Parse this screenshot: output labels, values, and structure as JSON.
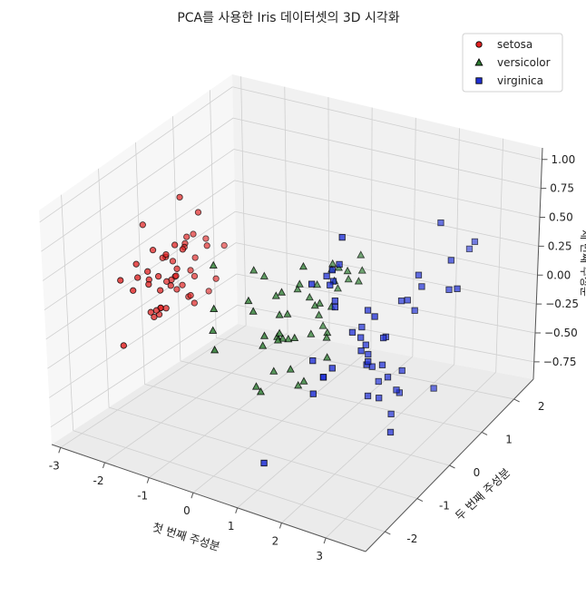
{
  "chart_data": {
    "type": "scatter",
    "projection": "3d",
    "title": "PCA를 사용한 Iris 데이터셋의 3D 시각화",
    "xlabel": "첫 번째 주성분",
    "ylabel": "두 번째 주성분",
    "zlabel": "세 번째 주성분",
    "xlim": [
      -3.2,
      3.9
    ],
    "ylim": [
      -2.6,
      2.6
    ],
    "zlim": [
      -0.9,
      1.1
    ],
    "x_ticks": [
      -3,
      -2,
      -1,
      0,
      1,
      2,
      3
    ],
    "y_ticks": [
      -2,
      -1,
      0,
      1,
      2
    ],
    "z_ticks": [
      -0.75,
      -0.5,
      -0.25,
      0.0,
      0.25,
      0.5,
      0.75,
      1.0
    ],
    "x_tick_labels": [
      "-3",
      "-2",
      "-1",
      "0",
      "1",
      "2",
      "3"
    ],
    "y_tick_labels": [
      "-2",
      "-1",
      "0",
      "1",
      "2"
    ],
    "z_tick_labels": [
      "−0.75",
      "−0.50",
      "−0.25",
      "0.00",
      "0.25",
      "0.50",
      "0.75",
      "1.00"
    ],
    "grid": true,
    "legend_position": "top-right",
    "series": [
      {
        "name": "setosa",
        "marker": "circle",
        "color": "#e02020",
        "points": [
          [
            -2.68,
            0.32,
            -0.03
          ],
          [
            -2.71,
            -0.18,
            -0.21
          ],
          [
            -2.89,
            -0.14,
            0.02
          ],
          [
            -2.75,
            -0.32,
            0.03
          ],
          [
            -2.73,
            0.33,
            0.09
          ],
          [
            -2.28,
            0.74,
            0.17
          ],
          [
            -2.82,
            -0.09,
            0.26
          ],
          [
            -2.63,
            0.16,
            -0.02
          ],
          [
            -2.89,
            -0.58,
            0.02
          ],
          [
            -2.67,
            -0.11,
            -0.2
          ],
          [
            -2.51,
            0.65,
            -0.08
          ],
          [
            -2.61,
            0.01,
            0.22
          ],
          [
            -2.79,
            -0.24,
            -0.22
          ],
          [
            -3.23,
            -0.51,
            0.06
          ],
          [
            -2.64,
            1.18,
            -0.32
          ],
          [
            -2.39,
            1.34,
            0.04
          ],
          [
            -2.62,
            0.81,
            0.03
          ],
          [
            -2.65,
            0.31,
            -0.02
          ],
          [
            -2.2,
            0.87,
            -0.12
          ],
          [
            -2.59,
            0.51,
            0.21
          ],
          [
            -2.31,
            0.39,
            -0.23
          ],
          [
            -2.54,
            0.43,
            0.2
          ],
          [
            -3.22,
            0.13,
            0.39
          ],
          [
            -2.3,
            0.1,
            0.27
          ],
          [
            -2.36,
            -0.04,
            0.33
          ],
          [
            -2.51,
            -0.15,
            -0.18
          ],
          [
            -2.47,
            0.13,
            0.09
          ],
          [
            -2.56,
            0.37,
            -0.1
          ],
          [
            -2.64,
            0.31,
            -0.13
          ],
          [
            -2.63,
            -0.19,
            0.08
          ],
          [
            -2.59,
            -0.2,
            -0.03
          ],
          [
            -2.41,
            0.41,
            -0.18
          ],
          [
            -2.65,
            0.81,
            0.22
          ],
          [
            -2.6,
            1.09,
            0.13
          ],
          [
            -2.67,
            -0.11,
            -0.2
          ],
          [
            -2.87,
            0.08,
            -0.31
          ],
          [
            -2.63,
            0.61,
            -0.25
          ],
          [
            -2.8,
            0.14,
            0.15
          ],
          [
            -2.98,
            -0.34,
            0.07
          ],
          [
            -2.59,
            0.09,
            -0.05
          ],
          [
            -2.77,
            0.19,
            0.15
          ],
          [
            -2.85,
            -0.94,
            -0.36
          ],
          [
            -3.0,
            -0.34,
            0.18
          ],
          [
            -2.41,
            0.19,
            0.67
          ],
          [
            -2.21,
            0.44,
            0.51
          ],
          [
            -2.71,
            -0.25,
            -0.25
          ],
          [
            -2.54,
            0.5,
            0.27
          ],
          [
            -2.84,
            -0.23,
            0.11
          ],
          [
            -2.54,
            0.58,
            -0.02
          ],
          [
            -2.7,
            0.11,
            -0.03
          ]
        ]
      },
      {
        "name": "versicolor",
        "marker": "triangle",
        "color": "#2e7d32",
        "points": [
          [
            1.28,
            0.69,
            0.39
          ],
          [
            0.93,
            0.32,
            0.37
          ],
          [
            1.46,
            0.5,
            0.32
          ],
          [
            0.18,
            -0.83,
            -0.47
          ],
          [
            1.09,
            0.08,
            0.09
          ],
          [
            0.64,
            -0.42,
            -0.09
          ],
          [
            1.1,
            0.28,
            0.36
          ],
          [
            -0.75,
            -1.0,
            -0.03
          ],
          [
            1.04,
            0.23,
            0.26
          ],
          [
            -0.01,
            -0.72,
            -0.47
          ],
          [
            -0.51,
            -1.26,
            -0.11
          ],
          [
            0.51,
            -0.1,
            0.26
          ],
          [
            0.26,
            -0.55,
            -0.36
          ],
          [
            0.98,
            -0.12,
            0.15
          ],
          [
            -0.17,
            -0.25,
            0.3
          ],
          [
            0.93,
            0.47,
            0.14
          ],
          [
            0.66,
            -0.35,
            -0.48
          ],
          [
            0.23,
            -0.33,
            0.04
          ],
          [
            0.94,
            -0.54,
            -0.38
          ],
          [
            0.04,
            -0.58,
            -0.17
          ],
          [
            1.12,
            -0.08,
            -0.08
          ],
          [
            0.36,
            0.03,
            0.18
          ],
          [
            1.3,
            -0.33,
            -0.05
          ],
          [
            0.92,
            -0.18,
            0.14
          ],
          [
            0.71,
            0.15,
            0.22
          ],
          [
            0.9,
            0.33,
            0.32
          ],
          [
            1.33,
            0.24,
            0.36
          ],
          [
            1.56,
            0.27,
            0.29
          ],
          [
            0.81,
            -0.16,
            -0.1
          ],
          [
            -0.31,
            -0.37,
            0.36
          ],
          [
            -0.07,
            -0.7,
            0.12
          ],
          [
            -0.19,
            -0.68,
            0.19
          ],
          [
            0.14,
            -0.31,
            0.18
          ],
          [
            1.38,
            -0.42,
            -0.18
          ],
          [
            0.59,
            -0.48,
            -0.33
          ],
          [
            0.81,
            0.19,
            -0.11
          ],
          [
            1.22,
            0.41,
            0.25
          ],
          [
            0.81,
            -0.37,
            0.48
          ],
          [
            0.25,
            -0.27,
            -0.16
          ],
          [
            0.16,
            -0.68,
            -0.06
          ],
          [
            0.46,
            -0.67,
            -0.07
          ],
          [
            0.89,
            -0.03,
            0.03
          ],
          [
            0.23,
            -0.4,
            -0.12
          ],
          [
            -0.71,
            -1.01,
            0.15
          ],
          [
            0.36,
            -0.5,
            -0.06
          ],
          [
            0.33,
            -0.21,
            -0.17
          ],
          [
            0.38,
            -0.29,
            0.05
          ],
          [
            0.64,
            0.02,
            0.14
          ],
          [
            -0.91,
            -0.75,
            0.43
          ],
          [
            0.3,
            -0.35,
            0.23
          ]
        ]
      },
      {
        "name": "virginica",
        "marker": "square",
        "color": "#1f2fd6",
        "points": [
          [
            2.53,
            -0.01,
            -0.76
          ],
          [
            1.41,
            -0.57,
            -0.3
          ],
          [
            2.62,
            0.34,
            0.21
          ],
          [
            1.97,
            -0.18,
            -0.13
          ],
          [
            2.35,
            -0.04,
            -0.24
          ],
          [
            3.4,
            0.55,
            0.31
          ],
          [
            0.52,
            -1.19,
            -0.92
          ],
          [
            2.93,
            0.35,
            0.34
          ],
          [
            2.32,
            -0.24,
            0.18
          ],
          [
            2.92,
            0.78,
            -0.57
          ],
          [
            1.66,
            0.24,
            -0.06
          ],
          [
            1.8,
            -0.22,
            0.01
          ],
          [
            2.17,
            0.22,
            -0.1
          ],
          [
            1.34,
            -0.78,
            -0.39
          ],
          [
            1.59,
            -0.54,
            -0.22
          ],
          [
            1.9,
            0.12,
            -0.56
          ],
          [
            1.95,
            0.04,
            0.14
          ],
          [
            3.49,
            1.18,
            0.57
          ],
          [
            3.8,
            0.26,
            0.41
          ],
          [
            1.3,
            -0.76,
            0.46
          ],
          [
            2.43,
            0.38,
            -0.55
          ],
          [
            1.2,
            -0.61,
            -0.18
          ],
          [
            3.5,
            0.46,
            0.57
          ],
          [
            1.39,
            -0.2,
            0.22
          ],
          [
            2.28,
            0.33,
            -0.72
          ],
          [
            2.62,
            0.56,
            0.08
          ],
          [
            1.26,
            -0.18,
            0.33
          ],
          [
            1.29,
            -0.12,
            0.35
          ],
          [
            2.12,
            -0.21,
            -0.22
          ],
          [
            2.39,
            0.46,
            0.16
          ],
          [
            2.84,
            0.37,
            0.42
          ],
          [
            3.23,
            1.37,
            0.45
          ],
          [
            2.16,
            -0.22,
            -0.19
          ],
          [
            1.44,
            -0.14,
            0.5
          ],
          [
            1.78,
            -0.5,
            0.81
          ],
          [
            3.08,
            0.69,
            0.79
          ],
          [
            2.14,
            0.14,
            -0.56
          ],
          [
            1.9,
            0.05,
            -0.14
          ],
          [
            1.17,
            -0.16,
            0.39
          ],
          [
            2.11,
            0.37,
            -0.13
          ],
          [
            2.31,
            0.18,
            -0.39
          ],
          [
            1.92,
            0.41,
            -0.51
          ],
          [
            1.41,
            -0.57,
            -0.3
          ],
          [
            2.56,
            0.28,
            -0.34
          ],
          [
            2.42,
            0.3,
            -0.51
          ],
          [
            1.94,
            0.19,
            -0.34
          ],
          [
            1.53,
            -0.38,
            0.22
          ],
          [
            1.76,
            0.08,
            -0.1
          ],
          [
            1.9,
            0.12,
            -0.23
          ],
          [
            1.39,
            -0.28,
            0.48
          ]
        ]
      }
    ]
  }
}
